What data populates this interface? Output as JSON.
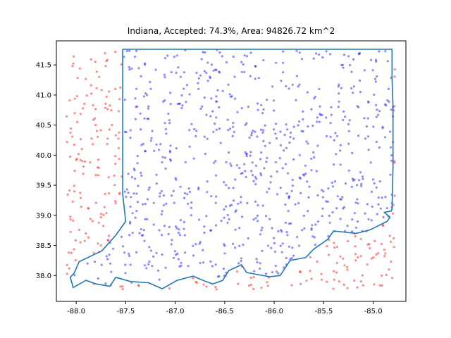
{
  "chart_data": {
    "type": "scatter",
    "title": "Indiana, Accepted: 74.3%, Area: 94826.72 km^2",
    "xlabel": "",
    "ylabel": "",
    "xlim": [
      -88.2,
      -84.67
    ],
    "ylim": [
      37.57,
      41.9
    ],
    "xticks": [
      "-88.0",
      "-87.5",
      "-87.0",
      "-86.5",
      "-86.0",
      "-85.5",
      "-85.0"
    ],
    "yticks": [
      "38.0",
      "38.5",
      "39.0",
      "39.5",
      "40.0",
      "40.5",
      "41.0",
      "41.5"
    ],
    "grid": false,
    "accepted_fraction": 0.743,
    "sample_bounds": {
      "x": [
        -88.1,
        -84.78
      ],
      "y": [
        37.77,
        41.76
      ]
    },
    "series": [
      {
        "kind": "accepted",
        "color": "#0000ff",
        "alpha": 0.45
      },
      {
        "kind": "rejected",
        "color": "#ff0000",
        "alpha": 0.45
      },
      {
        "kind": "boundary",
        "color": "#1f77b4"
      }
    ],
    "boundary": [
      [
        -87.53,
        41.76
      ],
      [
        -86.8,
        41.76
      ],
      [
        -85.8,
        41.76
      ],
      [
        -84.81,
        41.76
      ],
      [
        -84.81,
        41.3
      ],
      [
        -84.8,
        40.8
      ],
      [
        -84.8,
        40.3
      ],
      [
        -84.8,
        39.8
      ],
      [
        -84.81,
        39.1
      ],
      [
        -84.82,
        39.07
      ],
      [
        -84.89,
        39.05
      ],
      [
        -84.83,
        38.97
      ],
      [
        -84.86,
        38.9
      ],
      [
        -85.03,
        38.76
      ],
      [
        -85.17,
        38.7
      ],
      [
        -85.4,
        38.74
      ],
      [
        -85.46,
        38.6
      ],
      [
        -85.6,
        38.44
      ],
      [
        -85.68,
        38.3
      ],
      [
        -85.84,
        38.25
      ],
      [
        -85.94,
        38.0
      ],
      [
        -86.05,
        37.98
      ],
      [
        -86.28,
        38.05
      ],
      [
        -86.33,
        38.18
      ],
      [
        -86.46,
        38.08
      ],
      [
        -86.52,
        37.92
      ],
      [
        -86.62,
        37.86
      ],
      [
        -86.69,
        37.9
      ],
      [
        -86.82,
        37.99
      ],
      [
        -86.98,
        37.92
      ],
      [
        -87.13,
        37.78
      ],
      [
        -87.27,
        37.88
      ],
      [
        -87.45,
        37.9
      ],
      [
        -87.6,
        37.97
      ],
      [
        -87.66,
        37.82
      ],
      [
        -87.8,
        37.86
      ],
      [
        -87.9,
        37.92
      ],
      [
        -88.03,
        37.8
      ],
      [
        -88.06,
        37.97
      ],
      [
        -88.02,
        38.04
      ],
      [
        -87.97,
        38.23
      ],
      [
        -87.74,
        38.41
      ],
      [
        -87.6,
        38.67
      ],
      [
        -87.5,
        38.9
      ],
      [
        -87.53,
        39.35
      ],
      [
        -87.53,
        40.0
      ],
      [
        -87.53,
        40.5
      ],
      [
        -87.53,
        41.0
      ],
      [
        -87.53,
        41.76
      ]
    ]
  }
}
